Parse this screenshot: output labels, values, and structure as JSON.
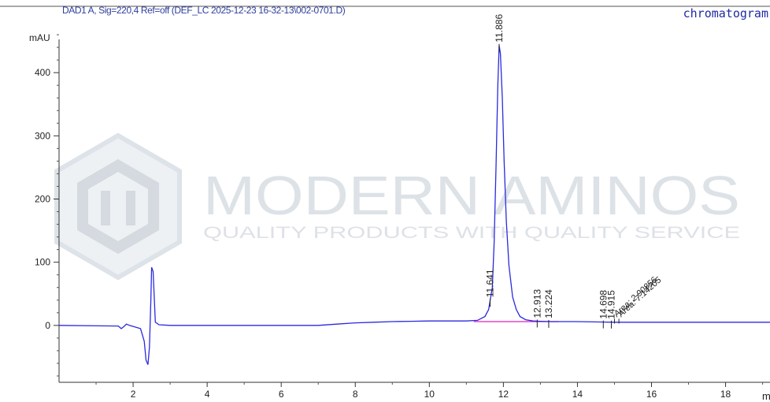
{
  "header": {
    "signal": "DAD1 A, Sig=220,4 Ref=off (DEF_LC 2025-12-23 16-32-13\\002-0701.D)",
    "tag": "chromatogram"
  },
  "watermark": {
    "name": "MODERN AMINOS",
    "tagline": "QUALITY PRODUCTS WITH QUALITY SERVICE"
  },
  "colors": {
    "trace": "#2a2ae0",
    "baseline": "#e020c0",
    "text": "#222222",
    "header": "#2e3f9e",
    "watermark": "#cfd6dc"
  },
  "chart_data": {
    "type": "line",
    "title": "DAD1 A, Sig=220,4 Ref=off (DEF_LC 2025-12-23 16-32-13\\002-0701.D)",
    "ylabel": "mAU",
    "xlabel": "m",
    "xlim": [
      0,
      19.2
    ],
    "ylim": [
      -90,
      490
    ],
    "x_ticks": [
      2,
      4,
      6,
      8,
      10,
      12,
      14,
      16,
      18
    ],
    "y_ticks": [
      0,
      100,
      200,
      300,
      400
    ],
    "grid": false,
    "series": [
      {
        "x": [
          0,
          1.6,
          1.68,
          1.75,
          1.82,
          1.9,
          2.2,
          2.3,
          2.35,
          2.4,
          2.44,
          2.48,
          2.5,
          2.54,
          2.6,
          2.7,
          3.0,
          4.0,
          5.0,
          6.0,
          7.0,
          7.5,
          8.0,
          8.5,
          9.0,
          9.5,
          10.0,
          10.5,
          11.0,
          11.3,
          11.5,
          11.6,
          11.7,
          11.75,
          11.8,
          11.85,
          11.886,
          11.92,
          11.97,
          12.02,
          12.08,
          12.15,
          12.25,
          12.35,
          12.45,
          12.6,
          12.8,
          13.0,
          13.3,
          13.6,
          14.0,
          15.0,
          16.0,
          17.0,
          18.0,
          19.2
        ],
        "y": [
          0,
          -1,
          -5,
          -2,
          2,
          0,
          -5,
          -25,
          -55,
          -62,
          -35,
          40,
          92,
          85,
          5,
          1,
          0,
          0,
          0,
          0,
          0,
          2,
          4,
          5,
          6,
          6.5,
          7,
          7,
          7,
          8,
          14,
          25,
          60,
          130,
          250,
          380,
          443,
          430,
          360,
          260,
          165,
          95,
          45,
          25,
          14,
          9,
          7,
          6.5,
          6,
          6,
          6,
          5,
          5,
          5,
          5,
          5
        ]
      }
    ],
    "baseline": {
      "x": [
        11.2,
        13.5
      ],
      "y": [
        6,
        6
      ]
    },
    "peak_labels": [
      {
        "x": 11.641,
        "label": "11.641"
      },
      {
        "x": 11.886,
        "label": "11.886"
      },
      {
        "x": 12.913,
        "label": "12.913"
      },
      {
        "x": 13.224,
        "label": "13.224"
      },
      {
        "x": 14.698,
        "label": "14.698"
      },
      {
        "x": 14.915,
        "label": "14.915"
      }
    ],
    "annotations": [
      {
        "x": 15.0,
        "label": "Area: 2.90856"
      },
      {
        "x": 15.12,
        "label": "Area: 7.14205"
      }
    ]
  }
}
